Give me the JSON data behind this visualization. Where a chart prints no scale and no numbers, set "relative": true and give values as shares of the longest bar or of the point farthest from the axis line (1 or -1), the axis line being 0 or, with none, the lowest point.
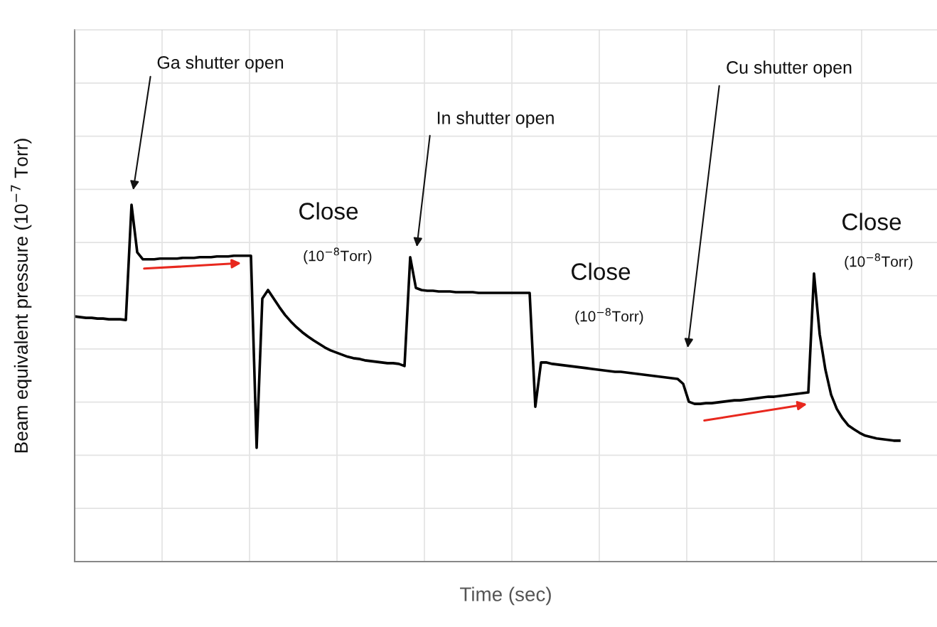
{
  "chart_data": {
    "type": "line",
    "relative": true,
    "grid": true,
    "legend": false,
    "marker": "none",
    "line_style": "solid",
    "xlabel": "Time (sec)",
    "ylabel": "Beam equivalent pressure (10$^{−7}$ Torr)",
    "annotations": [
      "Ga shutter open",
      "In shutter open",
      "Cu shutter open",
      "Close",
      "(10$^{−8}$Torr)",
      "Close",
      "(10$^{−8}$Torr)",
      "Close",
      "(10$^{−8}$Torr)"
    ],
    "categories": [
      null,
      null,
      null,
      null,
      null,
      null,
      null,
      null,
      null,
      null,
      null,
      null,
      null,
      null,
      null,
      null,
      null,
      null,
      null,
      null,
      null,
      null,
      null,
      null,
      null,
      null,
      null,
      null,
      null,
      null,
      null,
      null,
      null,
      null,
      null,
      null,
      null,
      null,
      null,
      null,
      null,
      null,
      null,
      null,
      null,
      null,
      null,
      null,
      null,
      null,
      null,
      null,
      null,
      null,
      null,
      null,
      null,
      null,
      null,
      null,
      null,
      null,
      null,
      null,
      null,
      null,
      null,
      null,
      null,
      null,
      null,
      null,
      null,
      null,
      null,
      null,
      null,
      null,
      null,
      null,
      null,
      null,
      null,
      null,
      null,
      null,
      null,
      null,
      null,
      null,
      null,
      null,
      null,
      null,
      null,
      null,
      null,
      null,
      null,
      null,
      null,
      null,
      null,
      null,
      null,
      null,
      null,
      null,
      null,
      null,
      null,
      null,
      null,
      null,
      null,
      null,
      null,
      null,
      null,
      null,
      null,
      null,
      null,
      null,
      null,
      null,
      null,
      null,
      null,
      null,
      null,
      null,
      null,
      null,
      null,
      null,
      null,
      null,
      null,
      null,
      null,
      null,
      null,
      null,
      null,
      null
    ],
    "series": [
      {
        "color": "#000000",
        "values": [
          0.687,
          0.685,
          0.683,
          0.683,
          0.681,
          0.681,
          0.679,
          0.679,
          0.679,
          0.677,
          1,
          0.867,
          0.847,
          0.847,
          0.847,
          0.849,
          0.849,
          0.849,
          0.849,
          0.851,
          0.851,
          0.851,
          0.853,
          0.853,
          0.853,
          0.855,
          0.855,
          0.855,
          0.857,
          0.857,
          0.857,
          0.857,
          0.319,
          0.737,
          0.761,
          0.737,
          0.713,
          0.691,
          0.673,
          0.657,
          0.643,
          0.631,
          0.62,
          0.61,
          0.6,
          0.592,
          0.586,
          0.58,
          0.574,
          0.57,
          0.568,
          0.564,
          0.562,
          0.56,
          0.558,
          0.556,
          0.556,
          0.554,
          0.548,
          0.853,
          0.767,
          0.761,
          0.759,
          0.759,
          0.757,
          0.757,
          0.757,
          0.755,
          0.755,
          0.755,
          0.755,
          0.753,
          0.753,
          0.753,
          0.753,
          0.753,
          0.753,
          0.753,
          0.753,
          0.753,
          0.753,
          0.434,
          0.558,
          0.558,
          0.554,
          0.552,
          0.55,
          0.548,
          0.546,
          0.544,
          0.542,
          0.54,
          0.538,
          0.536,
          0.534,
          0.532,
          0.532,
          0.53,
          0.528,
          0.526,
          0.524,
          0.522,
          0.52,
          0.518,
          0.516,
          0.514,
          0.512,
          0.498,
          0.448,
          0.442,
          0.442,
          0.444,
          0.444,
          0.446,
          0.448,
          0.45,
          0.452,
          0.452,
          0.454,
          0.456,
          0.458,
          0.46,
          0.462,
          0.462,
          0.464,
          0.466,
          0.468,
          0.47,
          0.472,
          0.474,
          0.807,
          0.637,
          0.538,
          0.468,
          0.428,
          0.402,
          0.382,
          0.371,
          0.361,
          0.353,
          0.349,
          0.345,
          0.343,
          0.341,
          0.339,
          0.339
        ]
      }
    ]
  }
}
